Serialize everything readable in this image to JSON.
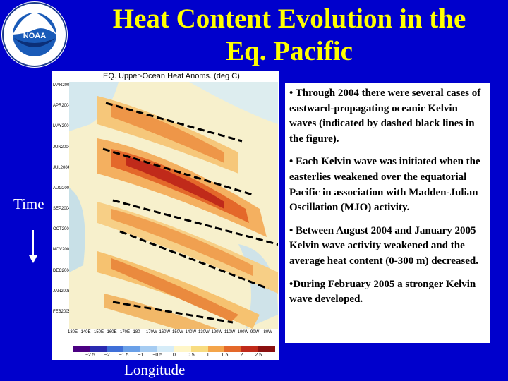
{
  "title_line1": "Heat Content Evolution in the",
  "title_line2": "Eq. Pacific",
  "logo": {
    "text": "NOAA",
    "ring_text_top": "NATIONAL OCEANIC AND ATMOSPHERIC ADMINISTRATION",
    "ring_text_bottom": "U.S. DEPARTMENT OF COMMERCE"
  },
  "figure": {
    "title": "EQ. Upper-Ocean Heat Anoms. (deg C)",
    "months": [
      "MAR2004",
      "APR2004",
      "MAY2004",
      "JUN2004",
      "JUL2004",
      "AUG2004",
      "SEP2004",
      "OCT2004",
      "NOV2004",
      "DEC2004",
      "JAN2005",
      "FEB2005"
    ],
    "longitudes": [
      "130E",
      "140E",
      "150E",
      "160E",
      "170E",
      "180",
      "170W",
      "160W",
      "150W",
      "140W",
      "130W",
      "120W",
      "110W",
      "100W",
      "90W",
      "80W"
    ],
    "colorbar_ticks": [
      "−2.5",
      "−2",
      "−1.5",
      "−1",
      "−0.5",
      "0",
      "0.5",
      "1",
      "1.5",
      "2",
      "2.5"
    ],
    "colorbar_colors": [
      "#4b0082",
      "#2a2ab0",
      "#3f6fd8",
      "#6aa0e8",
      "#a6ccf2",
      "#d6ecf8",
      "#fff6c8",
      "#f8dc80",
      "#f4a54a",
      "#e4682a",
      "#c02a1a",
      "#8a1010"
    ]
  },
  "text_box": {
    "bullets": [
      "• Through 2004 there were several cases of eastward-propagating oceanic Kelvin waves (indicated by dashed black lines in the figure).",
      "• Each Kelvin wave was initiated when the easterlies weakened over the equatorial Pacific in association with Madden-Julian Oscillation (MJO) activity.",
      "• Between August 2004 and January 2005 Kelvin wave activity weakened and the average heat content (0-300 m) decreased.",
      "•During February 2005 a stronger Kelvin wave developed."
    ]
  },
  "axis_labels": {
    "time": "Time",
    "longitude": "Longitude"
  }
}
